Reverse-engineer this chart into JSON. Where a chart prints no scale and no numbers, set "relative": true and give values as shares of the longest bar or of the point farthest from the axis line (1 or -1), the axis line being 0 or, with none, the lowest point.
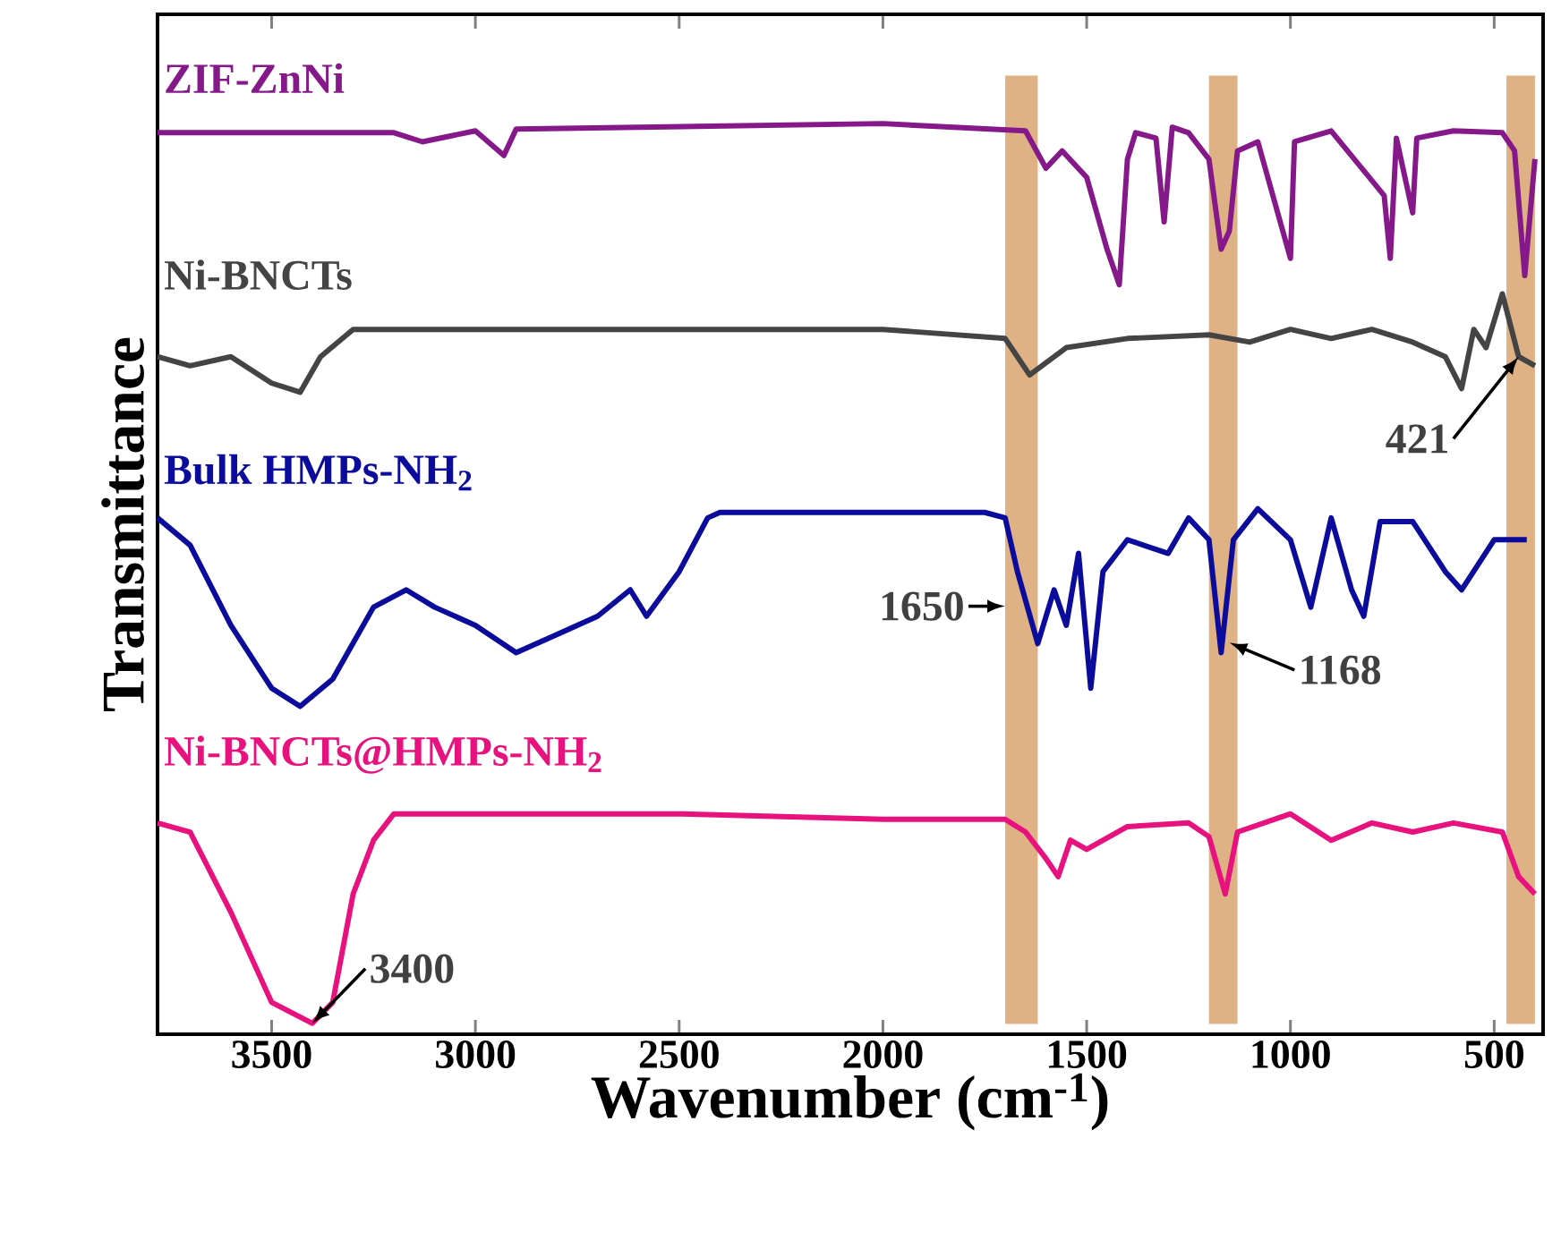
{
  "chart_data": {
    "type": "line",
    "relative": true,
    "xlabel": "Wavenumber (cm$^{-1}$)",
    "ylabel": "Transmittance",
    "xlim": [
      3780,
      380
    ],
    "xticks": [
      3500,
      3000,
      2500,
      2000,
      1500,
      1000,
      500
    ],
    "series": [
      {
        "name": "ZIF-ZnNi",
        "color": "#86198a",
        "x": [
          3780,
          3200,
          3130,
          3000,
          2930,
          2900,
          2000,
          1650,
          1600,
          1560,
          1500,
          1450,
          1420,
          1400,
          1380,
          1330,
          1310,
          1290,
          1250,
          1200,
          1170,
          1150,
          1130,
          1080,
          1000,
          990,
          900,
          770,
          755,
          740,
          700,
          690,
          600,
          480,
          450,
          425,
          400
        ],
        "values": [
          0.99,
          0.99,
          0.98,
          0.992,
          0.965,
          0.994,
          1,
          0.992,
          0.951,
          0.97,
          0.941,
          0.862,
          0.823,
          0.961,
          0.99,
          0.984,
          0.892,
          0.996,
          0.99,
          0.961,
          0.862,
          0.882,
          0.97,
          0.98,
          0.852,
          0.98,
          0.992,
          0.921,
          0.852,
          0.984,
          0.902,
          0.984,
          0.992,
          0.99,
          0.97,
          0.833,
          0.961
        ]
      },
      {
        "name": "Ni-BNCTs",
        "color": "#444444",
        "x": [
          3780,
          3700,
          3600,
          3500,
          3430,
          3380,
          3300,
          3000,
          2500,
          2000,
          1700,
          1640,
          1550,
          1400,
          1200,
          1100,
          1000,
          900,
          800,
          700,
          620,
          580,
          550,
          520,
          480,
          440,
          400
        ],
        "values": [
          0.744,
          0.734,
          0.744,
          0.715,
          0.705,
          0.744,
          0.774,
          0.774,
          0.774,
          0.774,
          0.764,
          0.724,
          0.754,
          0.764,
          0.768,
          0.76,
          0.774,
          0.764,
          0.774,
          0.76,
          0.744,
          0.709,
          0.774,
          0.754,
          0.813,
          0.744,
          0.734
        ]
      },
      {
        "name": "Bulk HMPs-NH$_{2}$",
        "color": "#0c0c9c",
        "x": [
          3780,
          3700,
          3600,
          3500,
          3430,
          3350,
          3250,
          3170,
          3100,
          3000,
          2900,
          2800,
          2700,
          2620,
          2580,
          2500,
          2430,
          2400,
          1750,
          1700,
          1670,
          1620,
          1580,
          1550,
          1520,
          1490,
          1460,
          1400,
          1300,
          1250,
          1200,
          1170,
          1140,
          1080,
          1000,
          950,
          900,
          850,
          820,
          780,
          700,
          620,
          580,
          500,
          420
        ],
        "values": [
          0.567,
          0.537,
          0.449,
          0.38,
          0.36,
          0.39,
          0.469,
          0.488,
          0.469,
          0.449,
          0.419,
          0.439,
          0.459,
          0.488,
          0.459,
          0.508,
          0.567,
          0.573,
          0.573,
          0.567,
          0.508,
          0.429,
          0.488,
          0.449,
          0.528,
          0.38,
          0.508,
          0.543,
          0.528,
          0.567,
          0.543,
          0.419,
          0.543,
          0.577,
          0.543,
          0.469,
          0.567,
          0.488,
          0.459,
          0.563,
          0.563,
          0.508,
          0.488,
          0.543,
          0.543
        ]
      },
      {
        "name": "Ni-BNCTs@HMPs-NH$_{2}$",
        "color": "#e8127f",
        "x": [
          3780,
          3700,
          3600,
          3500,
          3400,
          3350,
          3300,
          3250,
          3200,
          2500,
          2000,
          1700,
          1650,
          1600,
          1570,
          1540,
          1500,
          1400,
          1250,
          1200,
          1160,
          1130,
          1000,
          900,
          800,
          700,
          600,
          480,
          440,
          400
        ],
        "values": [
          0.232,
          0.222,
          0.134,
          0.035,
          0.012,
          0.035,
          0.154,
          0.213,
          0.242,
          0.242,
          0.236,
          0.236,
          0.222,
          0.193,
          0.173,
          0.213,
          0.203,
          0.228,
          0.232,
          0.217,
          0.154,
          0.222,
          0.242,
          0.213,
          0.232,
          0.222,
          0.232,
          0.222,
          0.173,
          0.154
        ]
      }
    ],
    "bands": [
      {
        "axis": "x",
        "from": 1700,
        "to": 1620,
        "color": "#dfb286"
      },
      {
        "axis": "x",
        "from": 1200,
        "to": 1130,
        "color": "#dfb286"
      },
      {
        "axis": "x",
        "from": 470,
        "to": 400,
        "color": "#dfb286"
      }
    ],
    "annotations": [
      {
        "text": "3400",
        "x": 3400,
        "y": 0.012
      },
      {
        "text": "1650",
        "x": 1700,
        "y": 0.47
      },
      {
        "text": "1168",
        "x": 1150,
        "y": 0.43
      },
      {
        "text": "421",
        "x": 440,
        "y": 0.744
      }
    ]
  }
}
